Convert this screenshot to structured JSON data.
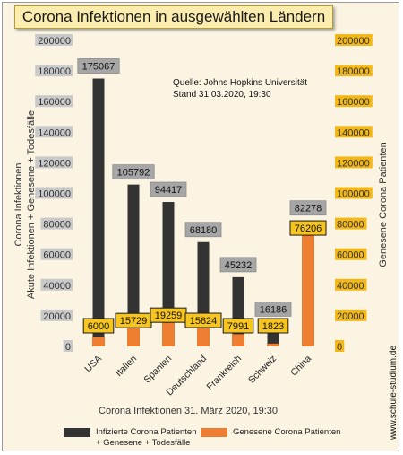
{
  "chart_data": {
    "type": "bar",
    "title": "Corona Infektionen in ausgewählten Ländern",
    "categories": [
      "USA",
      "Italien",
      "Spanien",
      "Deutschland",
      "Frankreich",
      "Schweiz",
      "China"
    ],
    "series": [
      {
        "name": "Infizierte Corona Patienten + Genesene + Todesfälle",
        "axis": "left",
        "color": "#333333",
        "values": [
          175067,
          105792,
          94417,
          68180,
          45232,
          16186,
          82278
        ]
      },
      {
        "name": "Genesene Corona Patienten",
        "axis": "right",
        "color": "#ed7d31",
        "values": [
          6000,
          15729,
          19259,
          15824,
          7991,
          1823,
          76206
        ]
      }
    ],
    "ylim": [
      0,
      200000
    ],
    "y_ticks": [
      0,
      20000,
      40000,
      60000,
      80000,
      100000,
      120000,
      140000,
      160000,
      180000,
      200000
    ],
    "ylabel_left_line1": "Corona Infektionen",
    "ylabel_left_line2": "Akute Infektionen + Genesene + Todesfälle",
    "ylabel_right": "Genesene Corona Patienten",
    "xlabel": "Corona Infektionen 31. März 2020, 19:30",
    "annotation_line1": "Quelle: Johns Hopkins Universität",
    "annotation_line2": "Stand 31.03.2020, 19:30",
    "legend": [
      {
        "line1": "Infizierte Corona Patienten",
        "line2": "+ Genesene + Todesfälle",
        "color": "#333333"
      },
      {
        "line1": "Genesene Corona Patienten",
        "line2": "",
        "color": "#ed7d31"
      }
    ],
    "legend_position": "bottom",
    "grid": false
  },
  "watermark": "www.schule-studium.de",
  "colors": {
    "background": "#fbf4e3",
    "left_tick_box": "#c9c9c9",
    "right_tick_box": "#f2b81a",
    "grey_label_box": "#a6a6a6",
    "yellow_label_box": "#f7c51f"
  }
}
